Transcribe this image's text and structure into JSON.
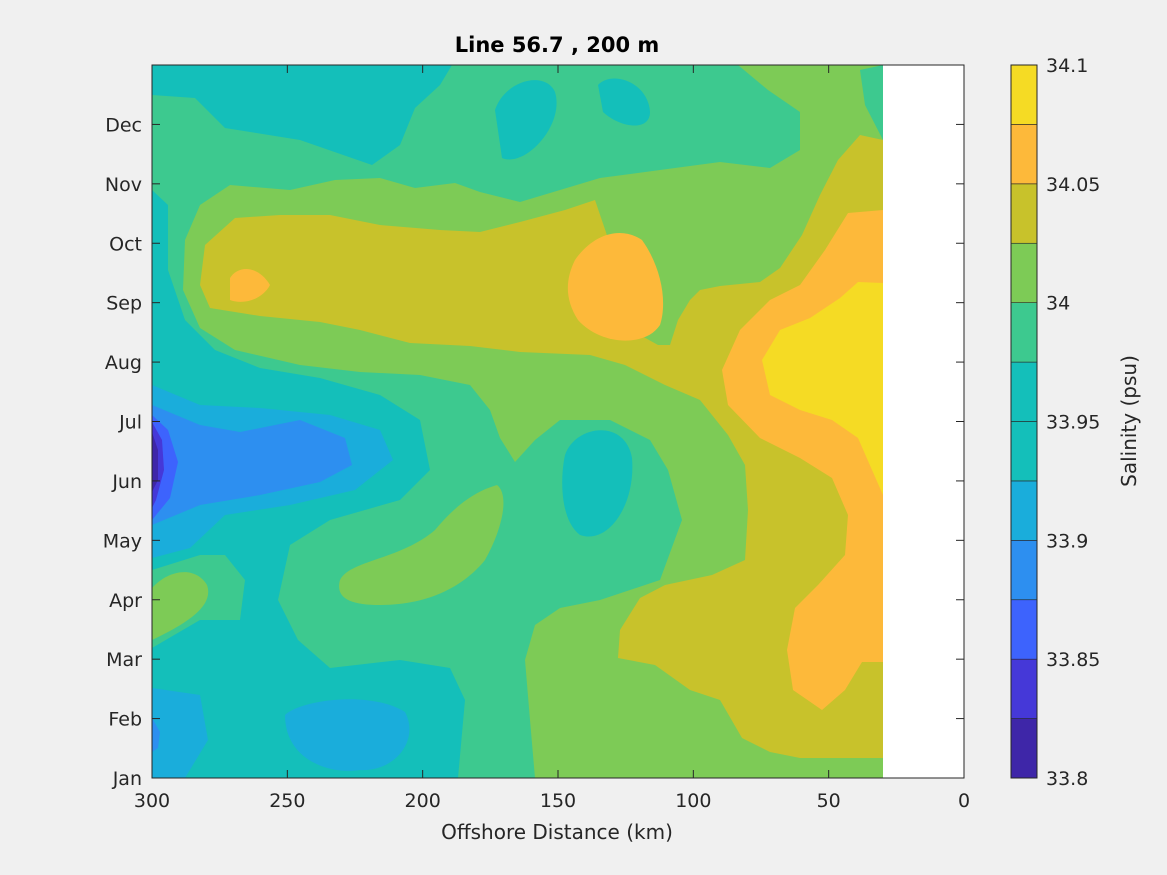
{
  "chart_data": {
    "type": "heatmap",
    "subtype": "filled-contour",
    "title": "Line 56.7 , 200 m",
    "xlabel": "Offshore Distance (km)",
    "ylabel": "",
    "xlim": [
      300,
      0
    ],
    "x_direction": "reversed",
    "x_ticks": [
      "300",
      "250",
      "200",
      "150",
      "100",
      "50",
      "0"
    ],
    "y_ticks": [
      "Jan",
      "Feb",
      "Mar",
      "Apr",
      "May",
      "Jun",
      "Jul",
      "Aug",
      "Sep",
      "Oct",
      "Nov",
      "Dec"
    ],
    "data_x_extent_km": [
      300,
      30
    ],
    "no_data_region_km": [
      30,
      0
    ],
    "colorbar": {
      "label": "Salinity (psu)",
      "range": [
        33.8,
        34.1
      ],
      "step": 0.025,
      "tick_labels": [
        "34.1",
        "34.05",
        "34",
        "33.95",
        "33.9",
        "33.85",
        "33.8"
      ],
      "colors": [
        "#3e26a8",
        "#4538d8",
        "#3d63fd",
        "#2d8ff0",
        "#1aaddb",
        "#14bfba",
        "#3dc98f",
        "#7dcb56",
        "#c8c22b",
        "#fdb93a",
        "#f5db24"
      ]
    },
    "features": [
      {
        "description": "fresh minimum near offshore edge",
        "x_km": 300,
        "month": "Jun",
        "salinity": 33.83
      },
      {
        "description": "fresh pool",
        "x_km": 250,
        "month": "Jun",
        "salinity": 33.91
      },
      {
        "description": "saline core",
        "x_km": 30,
        "month": "Aug",
        "salinity": 34.09
      },
      {
        "description": "saline patch",
        "x_km": 132,
        "month": "Sep",
        "salinity": 34.06
      },
      {
        "description": "saline patch",
        "x_km": 262,
        "month": "Sep",
        "salinity": 34.06
      }
    ]
  }
}
